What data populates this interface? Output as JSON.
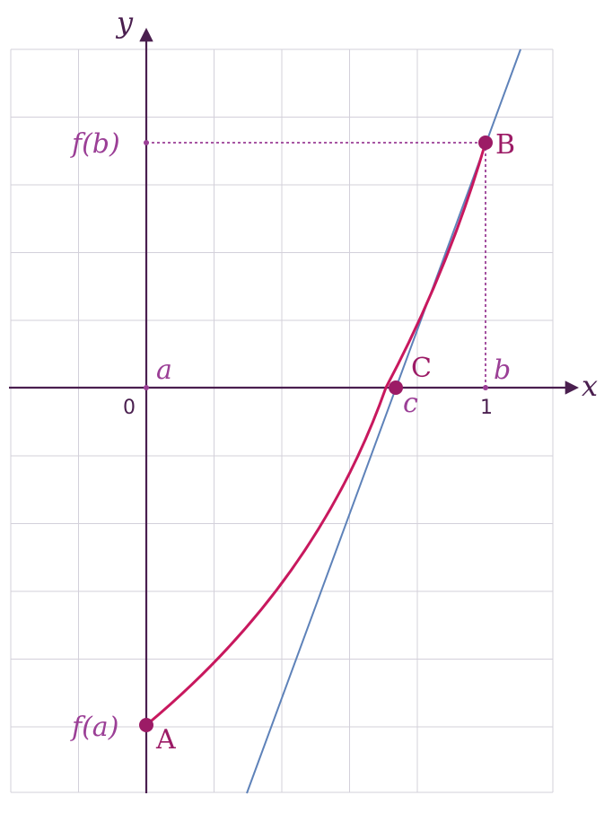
{
  "colors": {
    "axis": "#4a1f4f",
    "curve": "#c8185e",
    "tangent": "#5e82b9",
    "point": "#9c1b66",
    "guide": "#9b3f96",
    "label_math": "#9b3f96",
    "label_point": "#9c1b66",
    "grid": "#d3d0da"
  },
  "labels": {
    "x_axis": "x",
    "y_axis": "y",
    "origin": "0",
    "tick_one": "1",
    "a": "a",
    "b": "b",
    "c": "c",
    "fa": "f(a)",
    "fb": "f(b)",
    "point_A": "A",
    "point_B": "B",
    "point_C": "C"
  },
  "chart_data": {
    "type": "diagram",
    "points": {
      "A": {
        "x": 0,
        "y": -5
      },
      "B": {
        "x": 1,
        "y": 3.6
      },
      "C": {
        "x": 0.73,
        "y": 0
      }
    },
    "curve": {
      "from": "A",
      "to": "B",
      "shape": "convex increasing",
      "crosses_x_at": 0.71
    },
    "tangent": {
      "through": "B",
      "slope": 13.3
    }
  }
}
